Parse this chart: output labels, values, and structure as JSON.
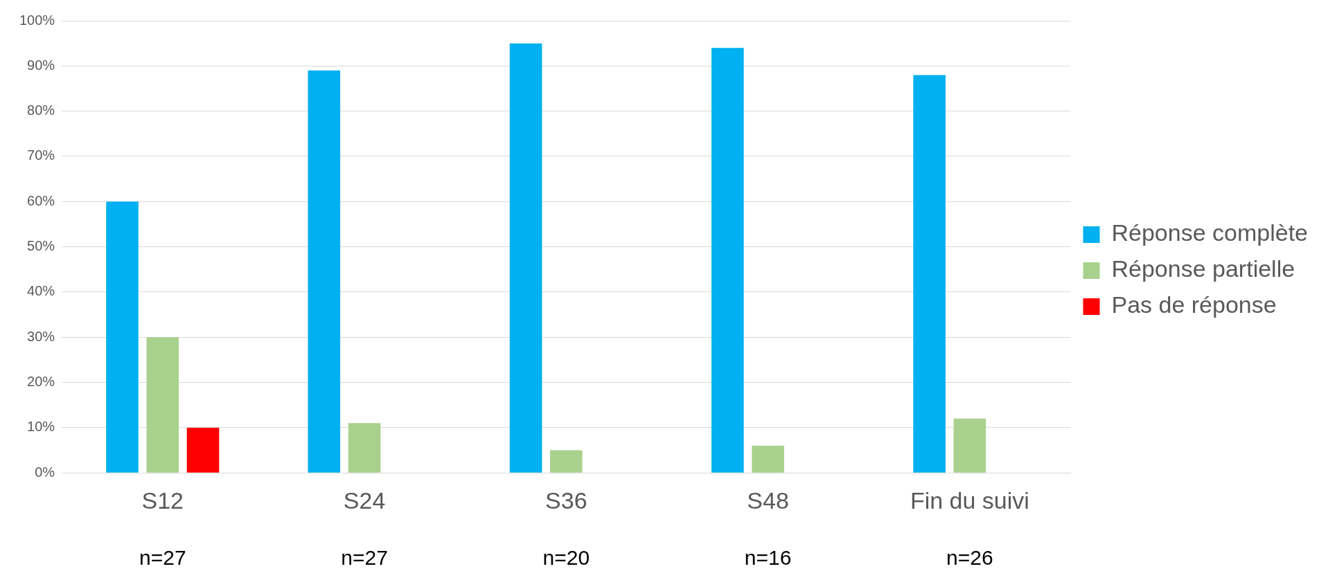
{
  "chart_data": {
    "type": "bar",
    "categories": [
      "S12",
      "S24",
      "S36",
      "S48",
      "Fin du suivi"
    ],
    "series": [
      {
        "name": "Réponse complète",
        "color": "#00b0f0",
        "values": [
          60,
          89,
          95,
          94,
          88
        ]
      },
      {
        "name": "Réponse partielle",
        "color": "#a9d18e",
        "values": [
          30,
          11,
          5,
          6,
          12
        ]
      },
      {
        "name": "Pas de réponse",
        "color": "#ff0000",
        "values": [
          10,
          0,
          0,
          0,
          0
        ]
      }
    ],
    "ylim": [
      0,
      100
    ],
    "yticks": [
      {
        "value": 0,
        "label": "0%"
      },
      {
        "value": 10,
        "label": "10%"
      },
      {
        "value": 20,
        "label": "20%"
      },
      {
        "value": 30,
        "label": "30%"
      },
      {
        "value": 40,
        "label": "40%"
      },
      {
        "value": 50,
        "label": "50%"
      },
      {
        "value": 60,
        "label": "60%"
      },
      {
        "value": 70,
        "label": "70%"
      },
      {
        "value": 80,
        "label": "80%"
      },
      {
        "value": 90,
        "label": "90%"
      },
      {
        "value": 100,
        "label": "100%"
      }
    ],
    "grid": "y",
    "legend": "right",
    "annotations": [
      "n=27",
      "n=27",
      "n=20",
      "n=16",
      "n=26"
    ]
  }
}
